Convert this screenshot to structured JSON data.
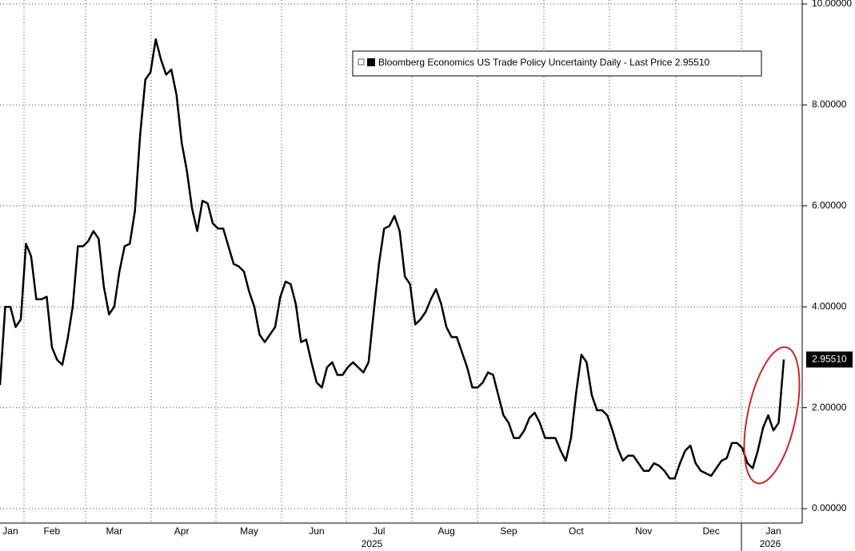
{
  "chart_data": {
    "type": "line",
    "categories": [
      null,
      null,
      "Jan",
      null,
      null,
      null,
      null,
      null,
      null,
      null,
      "Feb",
      null,
      null,
      null,
      null,
      null,
      null,
      null,
      null,
      null,
      null,
      null,
      "Mar",
      null,
      null,
      null,
      null,
      null,
      null,
      null,
      null,
      null,
      null,
      null,
      null,
      "Apr",
      null,
      null,
      null,
      null,
      null,
      null,
      null,
      null,
      null,
      null,
      null,
      null,
      "May",
      null,
      null,
      null,
      null,
      null,
      null,
      null,
      null,
      null,
      null,
      null,
      null,
      "Jun",
      null,
      null,
      null,
      null,
      null,
      null,
      null,
      null,
      null,
      null,
      null,
      "Jul",
      null,
      null,
      null,
      null,
      null,
      null,
      null,
      null,
      null,
      null,
      null,
      null,
      "Aug",
      null,
      null,
      null,
      null,
      null,
      null,
      null,
      null,
      null,
      null,
      null,
      "Sep",
      null,
      null,
      null,
      null,
      null,
      null,
      null,
      null,
      null,
      null,
      null,
      null,
      "Oct",
      null,
      null,
      null,
      null,
      null,
      null,
      null,
      null,
      null,
      null,
      null,
      null,
      "Nov",
      null,
      null,
      null,
      null,
      null,
      null,
      null,
      null,
      null,
      null,
      null,
      null,
      "Dec",
      null,
      null,
      null,
      null,
      null,
      null,
      null,
      null,
      null,
      null,
      null,
      "Jan",
      null,
      null
    ],
    "year_labels": [
      "2025",
      "2026"
    ],
    "series": [
      {
        "name": "Bloomberg Economics US Trade Policy Uncertainty Daily - Last Price 2.95510",
        "color": "#000000",
        "values": [
          2.45,
          4.0,
          4.0,
          3.6,
          3.75,
          5.25,
          5.0,
          4.15,
          4.15,
          4.2,
          3.2,
          2.95,
          2.85,
          3.35,
          4.0,
          5.2,
          5.2,
          5.3,
          5.5,
          5.35,
          4.4,
          3.85,
          4.0,
          4.7,
          5.2,
          5.25,
          5.9,
          7.4,
          8.5,
          8.65,
          9.3,
          8.9,
          8.6,
          8.7,
          8.2,
          7.25,
          6.7,
          5.95,
          5.5,
          6.1,
          6.05,
          5.65,
          5.55,
          5.55,
          5.2,
          4.85,
          4.8,
          4.7,
          4.3,
          4.0,
          3.45,
          3.3,
          3.45,
          3.6,
          4.2,
          4.5,
          4.45,
          4.05,
          3.3,
          3.35,
          2.9,
          2.5,
          2.4,
          2.8,
          2.9,
          2.65,
          2.65,
          2.8,
          2.9,
          2.8,
          2.7,
          2.9,
          3.9,
          4.85,
          5.55,
          5.6,
          5.8,
          5.5,
          4.6,
          4.45,
          3.65,
          3.75,
          3.9,
          4.15,
          4.35,
          4.05,
          3.6,
          3.4,
          3.4,
          3.1,
          2.8,
          2.4,
          2.4,
          2.5,
          2.7,
          2.65,
          2.25,
          1.85,
          1.7,
          1.4,
          1.4,
          1.55,
          1.8,
          1.9,
          1.7,
          1.4,
          1.4,
          1.4,
          1.15,
          0.95,
          1.4,
          2.3,
          3.05,
          2.9,
          2.25,
          1.95,
          1.95,
          1.85,
          1.55,
          1.2,
          0.95,
          1.05,
          1.05,
          0.9,
          0.75,
          0.75,
          0.9,
          0.85,
          0.75,
          0.6,
          0.6,
          0.9,
          1.15,
          1.25,
          0.9,
          0.75,
          0.7,
          0.65,
          0.8,
          0.95,
          1.0,
          1.3,
          1.3,
          1.2,
          0.9,
          0.8,
          1.15,
          1.6,
          1.85,
          1.55,
          1.7,
          2.9551
        ]
      }
    ],
    "last_price_label": "2.95510",
    "ylim": [
      0,
      10
    ],
    "yticks": [
      {
        "value": 0,
        "label": "0.00000"
      },
      {
        "value": 2,
        "label": "2.00000"
      },
      {
        "value": 4,
        "label": "4.00000"
      },
      {
        "value": 6,
        "label": "6.00000"
      },
      {
        "value": 8,
        "label": "8.00000"
      },
      {
        "value": 10,
        "label": "10.00000"
      }
    ],
    "grid": true
  }
}
